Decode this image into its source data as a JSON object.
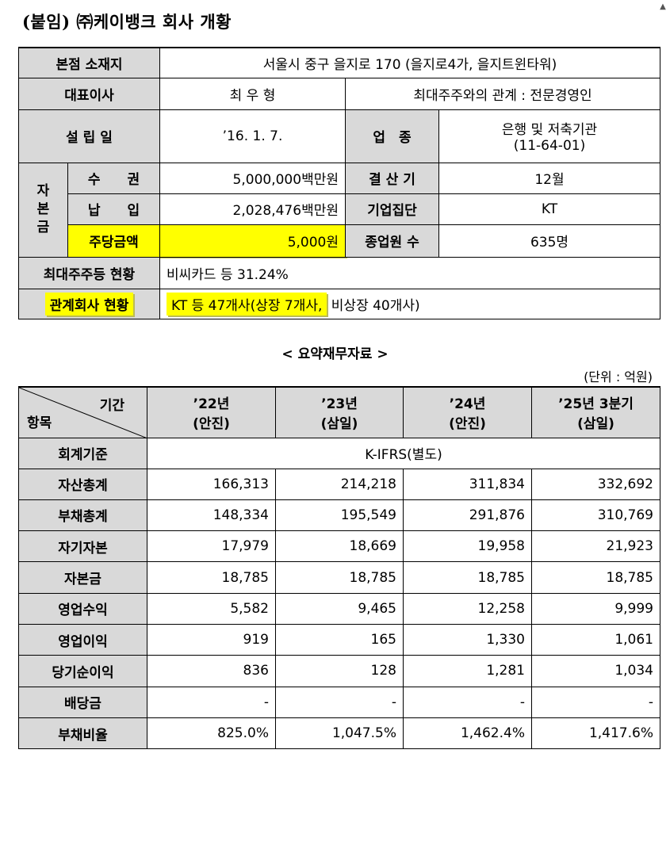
{
  "title": "(붙임) ㈜케이뱅크 회사 개황",
  "scroll_arrow": "▲",
  "overview": {
    "hq_label": "본점 소재지",
    "hq_value": "서울시 중구 을지로 170 (을지로4가, 을지트윈타워)",
    "ceo_label": "대표이사",
    "ceo_value": "최 우 형",
    "relation_value": "최대주주와의 관계 : 전문경영인",
    "est_label": "설 립 일",
    "est_value": "’16. 1. 7.",
    "industry_label": "업　종",
    "industry_value1": "은행 및 저축기관",
    "industry_value2": "(11-64-01)",
    "capital_label_1": "자",
    "capital_label_2": "본",
    "capital_label_3": "금",
    "authorized_label": "수　　권",
    "authorized_value": "5,000,000백만원",
    "fiscal_label": "결 산 기",
    "fiscal_value": "12월",
    "paidin_label": "납　　입",
    "paidin_value": "2,028,476백만원",
    "group_label": "기업집단",
    "group_value": "KT",
    "par_label": "주당금액",
    "par_value": "5,000원",
    "employees_label": "종업원 수",
    "employees_value": "635명",
    "shareholders_label": "최대주주등 현황",
    "shareholders_value": "비씨카드 등 31.24%",
    "affiliates_label": "관계회사 현황",
    "affiliates_value_hl": "KT 등 47개사(상장 7개사,",
    "affiliates_value_rest": " 비상장 40개사)"
  },
  "financial": {
    "section_title": "< 요약재무자료 >",
    "unit": "(단위 : 억원)",
    "header_period": "기간",
    "header_item": "항목",
    "columns": [
      {
        "year": "’22년",
        "auditor": "(안진)"
      },
      {
        "year": "’23년",
        "auditor": "(삼일)"
      },
      {
        "year": "’24년",
        "auditor": "(안진)"
      },
      {
        "year": "’25년 3분기",
        "auditor": "(삼일)"
      }
    ],
    "standard_label": "회계기준",
    "standard_value": "K-IFRS(별도)",
    "rows": [
      {
        "label": "자산총계",
        "values": [
          "166,313",
          "214,218",
          "311,834",
          "332,692"
        ]
      },
      {
        "label": "부채총계",
        "values": [
          "148,334",
          "195,549",
          "291,876",
          "310,769"
        ]
      },
      {
        "label": "자기자본",
        "values": [
          "17,979",
          "18,669",
          "19,958",
          "21,923"
        ]
      },
      {
        "label": "자본금",
        "values": [
          "18,785",
          "18,785",
          "18,785",
          "18,785"
        ]
      },
      {
        "label": "영업수익",
        "values": [
          "5,582",
          "9,465",
          "12,258",
          "9,999"
        ]
      },
      {
        "label": "영업이익",
        "values": [
          "919",
          "165",
          "1,330",
          "1,061"
        ]
      },
      {
        "label": "당기순이익",
        "values": [
          "836",
          "128",
          "1,281",
          "1,034"
        ]
      },
      {
        "label": "배당금",
        "values": [
          "-",
          "-",
          "-",
          "-"
        ]
      },
      {
        "label": "부채비율",
        "values": [
          "825.0%",
          "1,047.5%",
          "1,462.4%",
          "1,417.6%"
        ]
      }
    ]
  }
}
